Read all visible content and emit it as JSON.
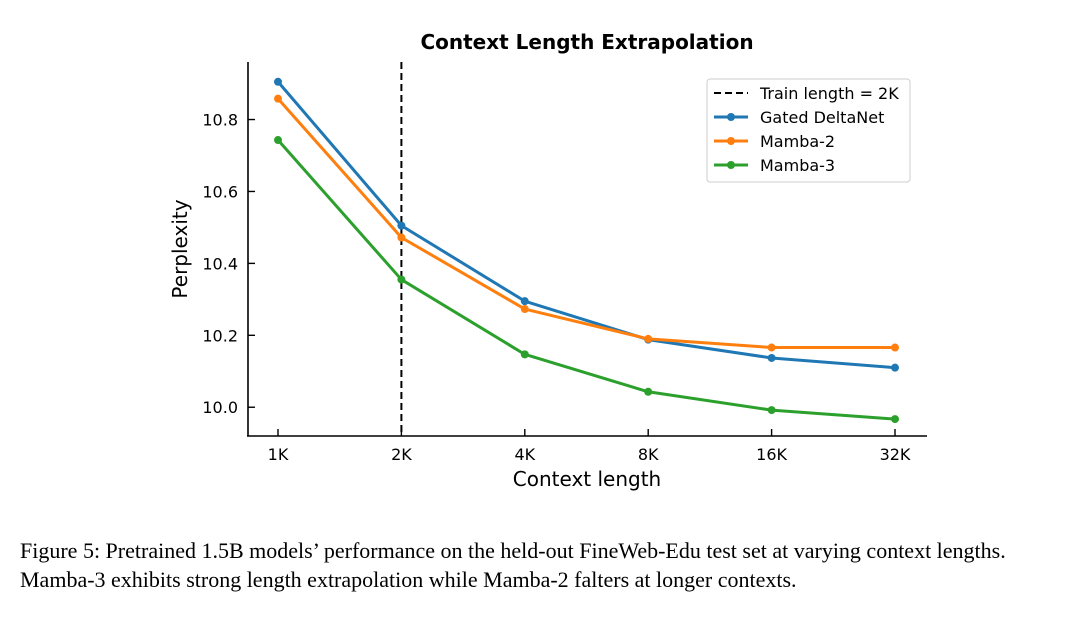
{
  "chart_data": {
    "type": "line",
    "title": "Context Length Extrapolation",
    "xlabel": "Context length",
    "ylabel": "Perplexity",
    "categories": [
      "1K",
      "2K",
      "4K",
      "8K",
      "16K",
      "32K"
    ],
    "yticks": [
      "10.0",
      "10.2",
      "10.4",
      "10.6",
      "10.8"
    ],
    "ytick_values": [
      10.0,
      10.2,
      10.4,
      10.6,
      10.8
    ],
    "ylim": [
      9.92,
      10.96
    ],
    "vline": {
      "category": "2K",
      "label": "Train length = 2K"
    },
    "series": [
      {
        "name": "Gated DeltaNet",
        "color": "#1f77b4",
        "values": [
          10.905,
          10.505,
          10.295,
          10.188,
          10.137,
          10.11
        ]
      },
      {
        "name": "Mamba-2",
        "color": "#ff7f0e",
        "values": [
          10.858,
          10.472,
          10.273,
          10.19,
          10.166,
          10.166
        ]
      },
      {
        "name": "Mamba-3",
        "color": "#2ca02c",
        "values": [
          10.743,
          10.355,
          10.147,
          10.043,
          9.992,
          9.967
        ]
      }
    ],
    "legend": "top-right",
    "grid": false
  },
  "caption": "Figure 5: Pretrained 1.5B models’ performance on the held-out FineWeb-Edu test set at varying context lengths. Mamba-3 exhibits strong length extrapolation while Mamba-2 falters at longer contexts."
}
